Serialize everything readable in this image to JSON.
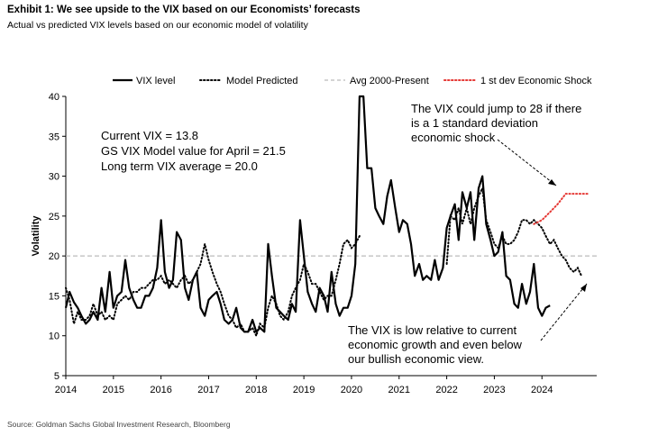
{
  "header": {
    "title": "Exhibit 1: We see upside to the VIX based on our Economists’ forecasts",
    "subtitle": "Actual vs predicted VIX levels based on our economic model of volatility"
  },
  "footer": {
    "source": "Source: Goldman Sachs Global Investment Research, Bloomberg"
  },
  "chart_data": {
    "type": "line",
    "ylabel": "Volatility",
    "ylim": [
      5,
      40
    ],
    "xlim": [
      2014,
      2025.15
    ],
    "yticks": [
      "5",
      "10",
      "15",
      "20",
      "25",
      "30",
      "35",
      "40"
    ],
    "xticks": [
      "2014",
      "2015",
      "2016",
      "2017",
      "2018",
      "2019",
      "2020",
      "2021",
      "2022",
      "2023",
      "2024"
    ],
    "legend_position": "top",
    "grid": false,
    "annotations": {
      "stats": [
        "Current VIX = 13.8",
        "GS VIX Model value for April = 21.5",
        "Long term VIX average = 20.0"
      ],
      "shock_note": [
        "The VIX could jump to 28 if there",
        "is a 1 standard deviation",
        "economic shock"
      ],
      "low_note": [
        "The VIX is low relative to current",
        "economic growth and even below",
        "our bullish economic view."
      ]
    },
    "series": [
      {
        "name": "VIX level",
        "style": "solid",
        "color": "#000000",
        "points": [
          [
            2014.0,
            13.5
          ],
          [
            2014.08,
            15.5
          ],
          [
            2014.17,
            14.2
          ],
          [
            2014.25,
            13.5
          ],
          [
            2014.33,
            12.5
          ],
          [
            2014.42,
            11.5
          ],
          [
            2014.5,
            12.0
          ],
          [
            2014.58,
            13.0
          ],
          [
            2014.67,
            12.0
          ],
          [
            2014.75,
            16.0
          ],
          [
            2014.83,
            13.0
          ],
          [
            2014.92,
            18.0
          ],
          [
            2015.0,
            13.5
          ],
          [
            2015.08,
            15.0
          ],
          [
            2015.17,
            15.5
          ],
          [
            2015.25,
            19.5
          ],
          [
            2015.33,
            16.0
          ],
          [
            2015.42,
            14.5
          ],
          [
            2015.5,
            13.5
          ],
          [
            2015.58,
            13.5
          ],
          [
            2015.67,
            15.0
          ],
          [
            2015.75,
            15.0
          ],
          [
            2015.83,
            16.0
          ],
          [
            2015.92,
            18.5
          ],
          [
            2016.0,
            24.5
          ],
          [
            2016.08,
            18.0
          ],
          [
            2016.17,
            16.0
          ],
          [
            2016.25,
            17.0
          ],
          [
            2016.33,
            23.0
          ],
          [
            2016.42,
            22.0
          ],
          [
            2016.5,
            16.0
          ],
          [
            2016.58,
            14.5
          ],
          [
            2016.67,
            17.0
          ],
          [
            2016.75,
            18.0
          ],
          [
            2016.83,
            13.5
          ],
          [
            2016.92,
            12.5
          ],
          [
            2017.0,
            14.5
          ],
          [
            2017.08,
            15.0
          ],
          [
            2017.17,
            15.5
          ],
          [
            2017.25,
            14.0
          ],
          [
            2017.33,
            12.0
          ],
          [
            2017.42,
            11.5
          ],
          [
            2017.5,
            12.0
          ],
          [
            2017.58,
            13.5
          ],
          [
            2017.67,
            11.0
          ],
          [
            2017.75,
            10.5
          ],
          [
            2017.83,
            10.5
          ],
          [
            2017.92,
            12.0
          ],
          [
            2018.0,
            10.5
          ],
          [
            2018.08,
            11.0
          ],
          [
            2018.17,
            10.5
          ],
          [
            2018.25,
            21.5
          ],
          [
            2018.33,
            17.5
          ],
          [
            2018.42,
            13.5
          ],
          [
            2018.5,
            13.0
          ],
          [
            2018.58,
            12.5
          ],
          [
            2018.67,
            12.0
          ],
          [
            2018.75,
            14.0
          ],
          [
            2018.83,
            13.0
          ],
          [
            2018.92,
            24.5
          ],
          [
            2019.0,
            20.0
          ],
          [
            2019.08,
            15.5
          ],
          [
            2019.17,
            14.0
          ],
          [
            2019.25,
            13.0
          ],
          [
            2019.33,
            16.0
          ],
          [
            2019.42,
            15.0
          ],
          [
            2019.5,
            13.0
          ],
          [
            2019.58,
            18.0
          ],
          [
            2019.67,
            14.0
          ],
          [
            2019.75,
            12.5
          ],
          [
            2019.83,
            13.5
          ],
          [
            2019.92,
            13.5
          ],
          [
            2020.0,
            15.0
          ],
          [
            2020.08,
            19.0
          ],
          [
            2020.17,
            40.0
          ],
          [
            2020.25,
            40.0
          ],
          [
            2020.33,
            31.0
          ],
          [
            2020.42,
            31.0
          ],
          [
            2020.5,
            26.0
          ],
          [
            2020.58,
            25.0
          ],
          [
            2020.67,
            24.0
          ],
          [
            2020.75,
            27.5
          ],
          [
            2020.83,
            29.5
          ],
          [
            2020.92,
            26.0
          ],
          [
            2021.0,
            23.0
          ],
          [
            2021.08,
            24.5
          ],
          [
            2021.17,
            24.0
          ],
          [
            2021.25,
            21.5
          ],
          [
            2021.33,
            17.5
          ],
          [
            2021.42,
            19.0
          ],
          [
            2021.5,
            17.0
          ],
          [
            2021.58,
            17.5
          ],
          [
            2021.67,
            17.0
          ],
          [
            2021.75,
            19.5
          ],
          [
            2021.83,
            17.0
          ],
          [
            2021.92,
            18.5
          ],
          [
            2022.0,
            23.5
          ],
          [
            2022.08,
            25.0
          ],
          [
            2022.17,
            26.5
          ],
          [
            2022.25,
            22.0
          ],
          [
            2022.33,
            28.0
          ],
          [
            2022.42,
            26.0
          ],
          [
            2022.5,
            28.0
          ],
          [
            2022.58,
            22.0
          ],
          [
            2022.67,
            28.5
          ],
          [
            2022.75,
            30.0
          ],
          [
            2022.83,
            24.0
          ],
          [
            2022.92,
            22.0
          ],
          [
            2023.0,
            20.0
          ],
          [
            2023.08,
            20.5
          ],
          [
            2023.17,
            23.0
          ],
          [
            2023.25,
            17.5
          ],
          [
            2023.33,
            17.0
          ],
          [
            2023.42,
            14.0
          ],
          [
            2023.5,
            13.5
          ],
          [
            2023.58,
            16.5
          ],
          [
            2023.67,
            14.0
          ],
          [
            2023.75,
            15.5
          ],
          [
            2023.83,
            19.0
          ],
          [
            2023.92,
            13.5
          ],
          [
            2024.0,
            12.5
          ],
          [
            2024.08,
            13.5
          ],
          [
            2024.17,
            13.8
          ]
        ]
      },
      {
        "name": "Model Predicted",
        "style": "dotted",
        "color": "#000000",
        "segments": [
          [
            [
              2014.0,
              16.0
            ],
            [
              2014.08,
              14.5
            ],
            [
              2014.17,
              11.5
            ],
            [
              2014.25,
              13.0
            ],
            [
              2014.33,
              12.0
            ],
            [
              2014.42,
              12.0
            ],
            [
              2014.5,
              12.5
            ],
            [
              2014.58,
              14.0
            ],
            [
              2014.67,
              12.5
            ],
            [
              2014.75,
              13.0
            ],
            [
              2014.83,
              12.0
            ],
            [
              2014.92,
              12.5
            ],
            [
              2015.0,
              12.0
            ],
            [
              2015.08,
              14.0
            ],
            [
              2015.17,
              14.5
            ],
            [
              2015.25,
              15.0
            ],
            [
              2015.33,
              14.5
            ],
            [
              2015.42,
              15.5
            ],
            [
              2015.5,
              15.5
            ],
            [
              2015.58,
              16.0
            ],
            [
              2015.67,
              16.0
            ],
            [
              2015.75,
              16.5
            ],
            [
              2015.83,
              17.0
            ],
            [
              2015.92,
              17.0
            ],
            [
              2016.0,
              17.5
            ],
            [
              2016.08,
              16.5
            ],
            [
              2016.17,
              17.0
            ],
            [
              2016.25,
              16.5
            ],
            [
              2016.33,
              16.0
            ],
            [
              2016.42,
              17.0
            ],
            [
              2016.5,
              17.5
            ],
            [
              2016.58,
              16.5
            ],
            [
              2016.67,
              17.0
            ],
            [
              2016.75,
              18.0
            ],
            [
              2016.83,
              19.0
            ],
            [
              2016.92,
              21.5
            ],
            [
              2017.0,
              19.5
            ],
            [
              2017.08,
              18.0
            ],
            [
              2017.17,
              16.5
            ],
            [
              2017.25,
              15.5
            ],
            [
              2017.33,
              14.0
            ],
            [
              2017.42,
              12.5
            ],
            [
              2017.5,
              12.0
            ],
            [
              2017.58,
              11.0
            ],
            [
              2017.67,
              11.5
            ],
            [
              2017.75,
              10.5
            ],
            [
              2017.83,
              10.5
            ],
            [
              2017.92,
              11.0
            ],
            [
              2018.0,
              10.0
            ],
            [
              2018.08,
              11.5
            ],
            [
              2018.17,
              11.0
            ],
            [
              2018.25,
              13.5
            ],
            [
              2018.33,
              15.0
            ],
            [
              2018.42,
              14.0
            ],
            [
              2018.5,
              12.5
            ],
            [
              2018.58,
              12.0
            ],
            [
              2018.67,
              13.0
            ],
            [
              2018.75,
              15.0
            ],
            [
              2018.83,
              16.0
            ],
            [
              2018.92,
              17.0
            ],
            [
              2019.0,
              19.0
            ],
            [
              2019.08,
              18.0
            ],
            [
              2019.17,
              16.5
            ],
            [
              2019.25,
              16.5
            ],
            [
              2019.33,
              15.5
            ],
            [
              2019.42,
              14.5
            ],
            [
              2019.5,
              15.0
            ],
            [
              2019.58,
              15.0
            ],
            [
              2019.67,
              17.0
            ],
            [
              2019.75,
              19.0
            ],
            [
              2019.83,
              21.5
            ],
            [
              2019.92,
              22.0
            ],
            [
              2020.0,
              21.0
            ],
            [
              2020.08,
              21.5
            ],
            [
              2020.17,
              22.5
            ]
          ],
          [
            [
              2022.0,
              19.0
            ],
            [
              2022.08,
              25.0
            ],
            [
              2022.17,
              24.5
            ],
            [
              2022.25,
              26.0
            ],
            [
              2022.33,
              24.0
            ],
            [
              2022.42,
              26.0
            ],
            [
              2022.5,
              24.0
            ],
            [
              2022.58,
              26.0
            ],
            [
              2022.67,
              27.5
            ],
            [
              2022.75,
              28.5
            ],
            [
              2022.83,
              24.5
            ],
            [
              2022.92,
              23.0
            ],
            [
              2023.0,
              21.5
            ],
            [
              2023.08,
              21.0
            ],
            [
              2023.17,
              22.5
            ],
            [
              2023.25,
              21.5
            ],
            [
              2023.33,
              21.5
            ],
            [
              2023.42,
              22.0
            ],
            [
              2023.5,
              23.0
            ],
            [
              2023.58,
              24.5
            ],
            [
              2023.67,
              24.5
            ],
            [
              2023.75,
              24.0
            ],
            [
              2023.83,
              24.5
            ],
            [
              2023.92,
              24.0
            ],
            [
              2024.0,
              23.5
            ],
            [
              2024.08,
              22.5
            ],
            [
              2024.17,
              21.5
            ],
            [
              2024.25,
              22.0
            ],
            [
              2024.33,
              21.0
            ],
            [
              2024.42,
              20.0
            ],
            [
              2024.5,
              19.5
            ],
            [
              2024.58,
              18.5
            ],
            [
              2024.67,
              18.0
            ],
            [
              2024.75,
              18.5
            ],
            [
              2024.83,
              17.5
            ]
          ]
        ]
      },
      {
        "name": "Avg 2000-Present",
        "style": "dashed",
        "color": "#bbbbbb",
        "points": [
          [
            2014.0,
            20.0
          ],
          [
            2025.15,
            20.0
          ]
        ]
      },
      {
        "name": "1 st dev Economic Shock",
        "style": "dotted",
        "color": "#e53935",
        "points": [
          [
            2023.83,
            24.0
          ],
          [
            2024.0,
            24.5
          ],
          [
            2024.17,
            25.5
          ],
          [
            2024.33,
            26.5
          ],
          [
            2024.5,
            27.8
          ],
          [
            2024.67,
            27.8
          ],
          [
            2024.83,
            27.8
          ],
          [
            2025.0,
            27.8
          ]
        ]
      }
    ]
  }
}
